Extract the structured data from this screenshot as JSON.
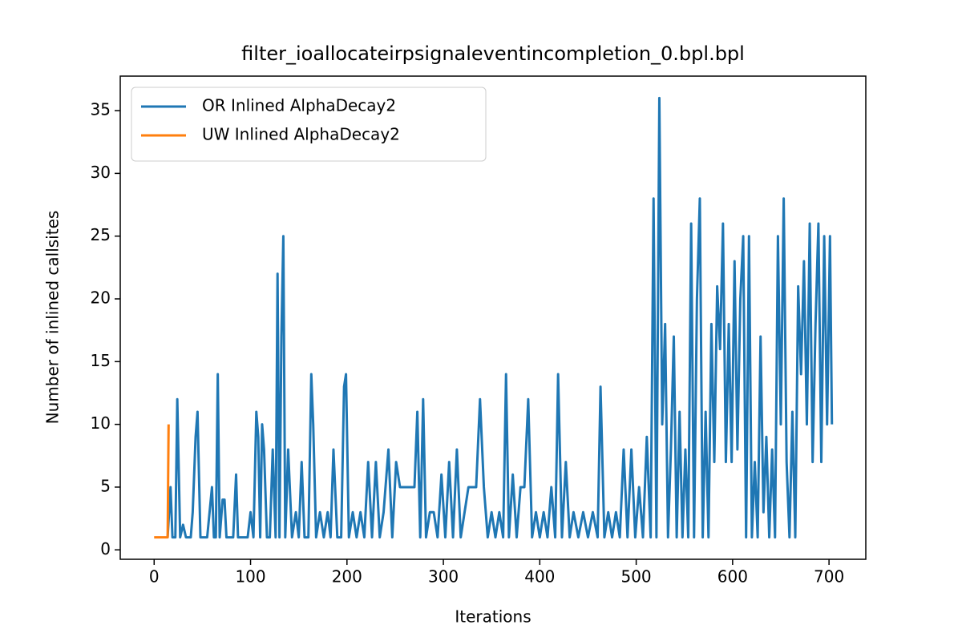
{
  "chart_data": {
    "type": "line",
    "title": "filter_ioallocateirpsignaleventincompletion_0.bpl.bpl",
    "xlabel": "Iterations",
    "ylabel": "Number of inlined callsites",
    "xlim": [
      -35.15,
      738.15
    ],
    "ylim": [
      -0.75,
      37.75
    ],
    "xticks": [
      0,
      100,
      200,
      300,
      400,
      500,
      600,
      700
    ],
    "yticks": [
      0,
      5,
      10,
      15,
      20,
      25,
      30,
      35
    ],
    "legend": "upper left",
    "grid": false,
    "series": [
      {
        "name": "OR Inlined AlphaDecay2",
        "color": "#1f77b4",
        "x": [
          14,
          17,
          19,
          22,
          24,
          27,
          30,
          33,
          38,
          40,
          43,
          45,
          48,
          55,
          60,
          62,
          64,
          66,
          68,
          71,
          73,
          75,
          78,
          82,
          85,
          87,
          92,
          97,
          100,
          103,
          106,
          108,
          110,
          112,
          114,
          117,
          120,
          123,
          126,
          128,
          130,
          132,
          134,
          136,
          139,
          143,
          147,
          150,
          153,
          156,
          160,
          163,
          165,
          168,
          172,
          176,
          180,
          183,
          186,
          190,
          194,
          197,
          199,
          202,
          206,
          210,
          214,
          218,
          222,
          226,
          230,
          234,
          238,
          243,
          247,
          251,
          255,
          260,
          265,
          270,
          273,
          276,
          279,
          282,
          286,
          290,
          294,
          298,
          302,
          306,
          310,
          314,
          318,
          322,
          326,
          330,
          334,
          338,
          342,
          346,
          350,
          354,
          358,
          362,
          365,
          368,
          372,
          376,
          380,
          384,
          388,
          392,
          396,
          400,
          404,
          408,
          412,
          416,
          419,
          423,
          427,
          431,
          435,
          440,
          445,
          450,
          455,
          460,
          463,
          467,
          471,
          475,
          479,
          483,
          487,
          491,
          495,
          499,
          503,
          507,
          511,
          515,
          518,
          521,
          524,
          527,
          530,
          533,
          536,
          539,
          542,
          545,
          548,
          551,
          554,
          557,
          560,
          563,
          566,
          569,
          572,
          575,
          578,
          581,
          584,
          587,
          590,
          593,
          596,
          599,
          602,
          605,
          608,
          611,
          614,
          617,
          620,
          623,
          626,
          629,
          632,
          635,
          638,
          641,
          644,
          647,
          650,
          653,
          656,
          659,
          662,
          665,
          668,
          671,
          674,
          677,
          680,
          683,
          686,
          689,
          692,
          695,
          698,
          701,
          703
        ],
        "values": [
          1,
          5,
          1,
          1,
          12,
          1,
          2,
          1,
          1,
          3,
          9,
          11,
          1,
          1,
          5,
          1,
          1,
          14,
          1,
          4,
          4,
          1,
          1,
          1,
          6,
          1,
          1,
          1,
          3,
          1,
          11,
          9,
          1,
          10,
          8,
          1,
          1,
          8,
          1,
          22,
          1,
          17,
          25,
          1,
          8,
          1,
          3,
          1,
          7,
          1,
          1,
          14,
          10,
          1,
          3,
          1,
          3,
          1,
          8,
          1,
          1,
          13,
          14,
          1,
          3,
          1,
          3,
          1,
          7,
          1,
          7,
          1,
          3,
          8,
          1,
          7,
          5,
          5,
          5,
          5,
          11,
          1,
          12,
          1,
          3,
          3,
          1,
          6,
          1,
          7,
          1,
          8,
          1,
          3,
          5,
          5,
          5,
          12,
          5,
          1,
          3,
          1,
          3,
          1,
          14,
          1,
          6,
          1,
          5,
          5,
          12,
          1,
          3,
          1,
          3,
          1,
          5,
          1,
          14,
          1,
          7,
          1,
          3,
          1,
          3,
          1,
          3,
          1,
          13,
          1,
          3,
          1,
          3,
          1,
          8,
          1,
          8,
          1,
          5,
          1,
          9,
          1,
          28,
          1,
          36,
          10,
          18,
          1,
          8,
          17,
          1,
          11,
          1,
          8,
          1,
          26,
          1,
          20,
          28,
          1,
          11,
          1,
          18,
          7,
          21,
          16,
          26,
          7,
          18,
          7,
          23,
          8,
          20,
          25,
          1,
          25,
          1,
          7,
          1,
          17,
          3,
          9,
          1,
          8,
          1,
          25,
          10,
          28,
          7,
          1,
          11,
          1,
          21,
          14,
          23,
          10,
          26,
          7,
          18,
          26,
          7,
          25,
          10,
          25,
          10
        ]
      },
      {
        "name": "UW Inlined AlphaDecay2",
        "color": "#ff7f0e",
        "x": [
          0,
          3,
          6,
          9,
          12,
          14,
          15
        ],
        "values": [
          1,
          1,
          1,
          1,
          1,
          1,
          10
        ]
      }
    ]
  }
}
